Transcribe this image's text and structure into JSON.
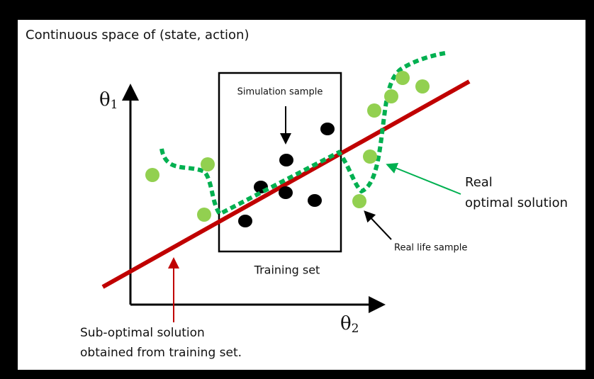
{
  "title": "Continuous space of (state, action)",
  "axes": {
    "y": {
      "symbol": "θ",
      "subscript": "1"
    },
    "x": {
      "symbol": "θ",
      "subscript": "2"
    }
  },
  "labels": {
    "simulation_sample": "Simulation sample",
    "training_set": "Training set",
    "real_optimal_solution": [
      "Real",
      "optimal solution"
    ],
    "real_life_sample": "Real life sample",
    "sub_optimal_solution": [
      "Sub-optimal solution",
      "obtained from training set."
    ]
  }
}
